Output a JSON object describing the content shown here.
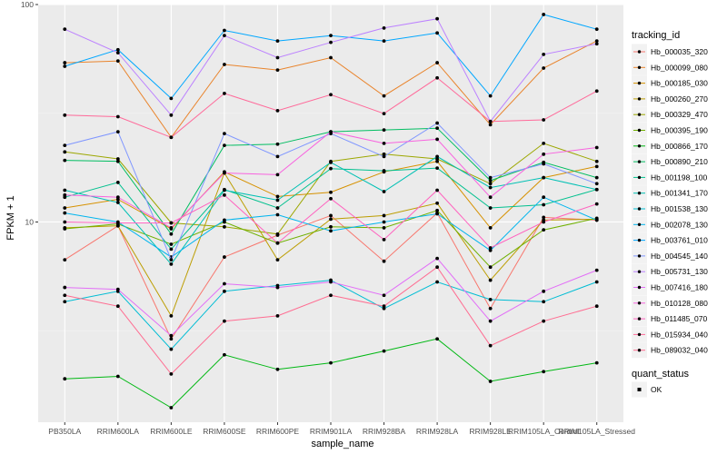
{
  "chart_data": {
    "type": "line",
    "xlabel": "sample_name",
    "ylabel": "FPKM + 1",
    "y_scale": "log10",
    "ylim": [
      1.2,
      100
    ],
    "y_ticks": [
      10,
      100
    ],
    "y_tick_labels": [
      "10",
      "100"
    ],
    "grid": true,
    "categories": [
      "PB350LA",
      "RRIM600LA",
      "RRIM600LE",
      "RRIM600SE",
      "RRIM600PE",
      "RRIM901LA",
      "RRIM928BA",
      "RRIM928LA",
      "RRIM928LE",
      "RRIM105LA_Control",
      "RRIM105LA_Stressed"
    ],
    "legend_title": "tracking_id",
    "legend_position": "right",
    "shape_legend_title": "quant_status",
    "shape_legend_items": [
      "OK"
    ],
    "series": [
      {
        "name": "Hb_000035_320",
        "color": "#F8766D",
        "values": [
          6.7,
          9.6,
          2.9,
          6.9,
          8.7,
          10.7,
          6.6,
          11.0,
          4.0,
          10.5,
          10.2
        ]
      },
      {
        "name": "Hb_000099_080",
        "color": "#E9842C",
        "values": [
          54.0,
          55.0,
          24.5,
          53.0,
          50.0,
          57.0,
          38.0,
          54.0,
          28.0,
          51.0,
          68.0
        ]
      },
      {
        "name": "Hb_000185_030",
        "color": "#D69100",
        "values": [
          11.6,
          12.7,
          9.3,
          17.0,
          13.1,
          13.7,
          17.0,
          19.0,
          9.4,
          16.0,
          18.0
        ]
      },
      {
        "name": "Hb_000260_270",
        "color": "#BC9D00",
        "values": [
          9.4,
          9.6,
          3.7,
          16.8,
          6.7,
          10.3,
          10.7,
          12.2,
          5.4,
          10.2,
          10.3
        ]
      },
      {
        "name": "Hb_000329_470",
        "color": "#9CA700",
        "values": [
          21.0,
          19.5,
          9.9,
          9.5,
          8.8,
          19.0,
          20.5,
          19.5,
          15.0,
          23.0,
          19.0
        ]
      },
      {
        "name": "Hb_000395_190",
        "color": "#6FB000",
        "values": [
          9.3,
          9.8,
          7.9,
          10.0,
          8.0,
          9.5,
          9.4,
          11.3,
          6.2,
          9.2,
          10.4
        ]
      },
      {
        "name": "Hb_000866_170",
        "color": "#00B813",
        "values": [
          1.9,
          1.95,
          1.4,
          2.45,
          2.1,
          2.25,
          2.55,
          2.9,
          1.85,
          2.05,
          2.25
        ]
      },
      {
        "name": "Hb_000890_210",
        "color": "#00BD61",
        "values": [
          19.2,
          19.0,
          8.8,
          22.5,
          22.8,
          26.0,
          26.5,
          27.0,
          15.5,
          18.8,
          16.0
        ]
      },
      {
        "name": "Hb_001198_100",
        "color": "#00C08E",
        "values": [
          13.0,
          15.2,
          7.5,
          14.1,
          11.6,
          17.6,
          17.2,
          17.7,
          11.6,
          12.0,
          14.1
        ]
      },
      {
        "name": "Hb_001341_170",
        "color": "#00C0B4",
        "values": [
          14.0,
          12.3,
          6.4,
          14.0,
          12.6,
          18.8,
          13.8,
          20.0,
          14.4,
          16.0,
          14.1
        ]
      },
      {
        "name": "Hb_001538_130",
        "color": "#00BDD4",
        "values": [
          4.3,
          4.8,
          2.6,
          4.8,
          5.1,
          5.4,
          4.0,
          5.3,
          4.4,
          4.3,
          5.3
        ]
      },
      {
        "name": "Hb_002078_130",
        "color": "#00B5EE",
        "values": [
          11.0,
          10.0,
          6.9,
          10.2,
          10.8,
          9.1,
          10.0,
          10.9,
          7.4,
          13.0,
          10.2
        ]
      },
      {
        "name": "Hb_003761_010",
        "color": "#00A7FF",
        "values": [
          52.0,
          62.0,
          37.0,
          76.0,
          68.0,
          72.0,
          68.0,
          74.0,
          38.0,
          90.0,
          77.0
        ]
      },
      {
        "name": "Hb_004545_140",
        "color": "#7F96FF",
        "values": [
          22.5,
          26.0,
          6.7,
          25.5,
          20.0,
          25.5,
          20.0,
          28.5,
          16.0,
          18.5,
          15.0
        ]
      },
      {
        "name": "Hb_005731_130",
        "color": "#BC81FF",
        "values": [
          77.0,
          60.0,
          31.0,
          72.0,
          57.0,
          67.0,
          78.0,
          86.0,
          29.0,
          59.0,
          66.0
        ]
      },
      {
        "name": "Hb_007416_180",
        "color": "#E26EF7",
        "values": [
          5.0,
          4.9,
          3.0,
          5.2,
          5.0,
          5.3,
          4.6,
          6.8,
          3.5,
          4.8,
          6.0
        ]
      },
      {
        "name": "Hb_010128_080",
        "color": "#F863DF",
        "values": [
          13.3,
          13.0,
          9.4,
          16.8,
          16.5,
          26.0,
          23.0,
          24.0,
          13.0,
          20.5,
          22.0
        ]
      },
      {
        "name": "Hb_011485_070",
        "color": "#FF62BF",
        "values": [
          10.0,
          9.9,
          9.9,
          13.3,
          8.0,
          12.8,
          8.3,
          14.0,
          7.6,
          10.0,
          12.1
        ]
      },
      {
        "name": "Hb_015934_040",
        "color": "#FF6A9A",
        "values": [
          31.0,
          30.5,
          24.5,
          39.0,
          32.5,
          38.5,
          31.5,
          46.0,
          29.0,
          29.5,
          40.0
        ]
      },
      {
        "name": "Hb_089032_040",
        "color": "#FF6C91",
        "values": [
          4.6,
          4.1,
          2.0,
          3.5,
          3.7,
          4.6,
          4.1,
          6.2,
          2.7,
          3.5,
          4.1
        ]
      }
    ]
  }
}
